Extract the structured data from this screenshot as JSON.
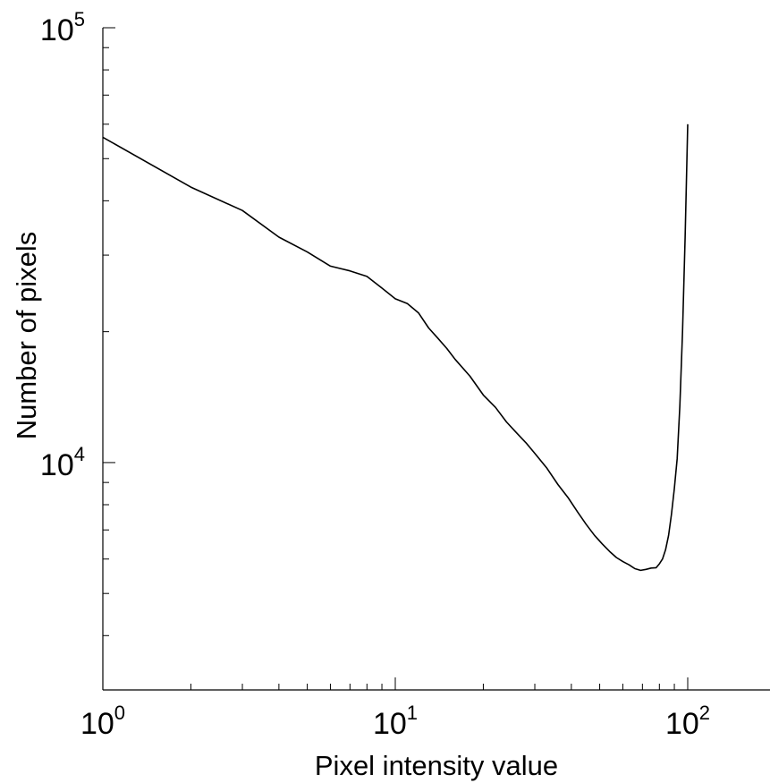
{
  "chart_data": {
    "type": "line",
    "title": "",
    "xlabel": "Pixel intensity value",
    "ylabel": "Number of pixels",
    "x_scale": "log",
    "y_scale": "log",
    "xlim": [
      1,
      180
    ],
    "ylim": [
      3000,
      100000
    ],
    "x_ticks": [
      {
        "value": 1,
        "base": "10",
        "exp": "0"
      },
      {
        "value": 10,
        "base": "10",
        "exp": "1"
      },
      {
        "value": 100,
        "base": "10",
        "exp": "2"
      }
    ],
    "y_ticks": [
      {
        "value": 10000,
        "base": "10",
        "exp": "4"
      },
      {
        "value": 100000,
        "base": "10",
        "exp": "5"
      }
    ],
    "grid": false,
    "legend": "none",
    "line_color": "#000000",
    "series": [
      {
        "x": [
          1,
          2,
          3,
          4,
          5,
          6,
          7,
          8,
          9,
          10,
          11,
          12,
          13,
          14,
          15,
          16,
          18,
          20,
          22,
          24,
          26,
          28,
          30,
          33,
          36,
          39,
          42,
          45,
          48,
          51,
          54,
          57,
          60,
          63,
          66,
          69,
          72,
          75,
          78,
          80,
          82,
          84,
          86,
          88,
          90,
          92,
          94,
          96,
          98,
          100
        ],
        "y": [
          56000,
          43000,
          38000,
          33000,
          30500,
          28300,
          27600,
          26800,
          25200,
          23800,
          23200,
          22100,
          20400,
          19300,
          18300,
          17300,
          15800,
          14300,
          13400,
          12400,
          11700,
          11100,
          10500,
          9700,
          8900,
          8300,
          7700,
          7200,
          6800,
          6500,
          6250,
          6050,
          5920,
          5820,
          5700,
          5650,
          5680,
          5720,
          5730,
          5850,
          6000,
          6300,
          6800,
          7600,
          8700,
          10200,
          13500,
          20000,
          33000,
          60000
        ]
      }
    ]
  }
}
